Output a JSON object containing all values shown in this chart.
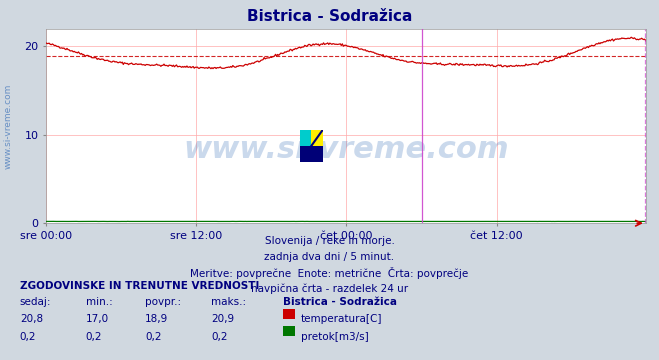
{
  "title": "Bistrica - Sodražica",
  "title_color": "#000080",
  "bg_color": "#d0d8e0",
  "plot_bg_color": "#ffffff",
  "grid_color": "#ffaaaa",
  "x_labels": [
    "sre 00:00",
    "sre 12:00",
    "čet 00:00",
    "čet 12:00"
  ],
  "x_label_color": "#000080",
  "y_ticks": [
    0,
    10,
    20
  ],
  "y_min": 0,
  "y_max": 22,
  "avg_line_value": 18.9,
  "avg_line_color": "#cc0000",
  "temp_line_color": "#cc0000",
  "flow_line_color": "#007700",
  "vline_color": "#cc44cc",
  "watermark_text": "www.si-vreme.com",
  "watermark_color": "#4477bb",
  "watermark_alpha": 0.28,
  "footer_lines": [
    "Slovenija / reke in morje.",
    "zadnja dva dni / 5 minut.",
    "Meritve: povprečne  Enote: metrične  Črta: povprečje",
    "navpična črta - razdelek 24 ur"
  ],
  "footer_color": "#000080",
  "table_header": "ZGODOVINSKE IN TRENUTNE VREDNOSTI",
  "table_cols": [
    "sedaj:",
    "min.:",
    "povpr.:",
    "maks.:"
  ],
  "table_rows": [
    [
      "20,8",
      "17,0",
      "18,9",
      "20,9"
    ],
    [
      "0,2",
      "0,2",
      "0,2",
      "0,2"
    ]
  ],
  "table_label": "Bistrica - Sodražica",
  "table_series": [
    "temperatura[C]",
    "pretok[m3/s]"
  ],
  "table_series_colors": [
    "#cc0000",
    "#007700"
  ],
  "table_color": "#000080",
  "left_label": "www.si-vreme.com",
  "left_label_color": "#4477bb",
  "n_points": 576
}
